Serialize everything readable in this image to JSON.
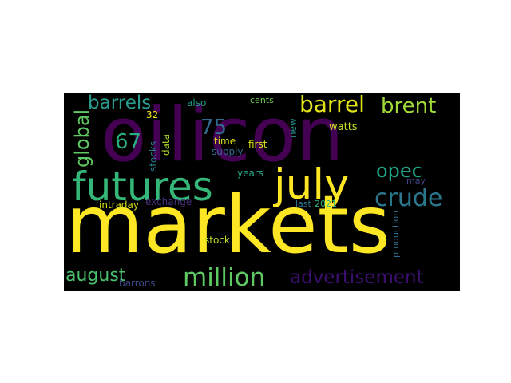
{
  "words": {
    "oilicon": {
      "text": "oilicon",
      "color": "#440154"
    },
    "markets": {
      "text": "markets",
      "color": "#fde725"
    },
    "futures": {
      "text": "futures",
      "color": "#35b779"
    },
    "july": {
      "text": "july",
      "color": "#fde725"
    },
    "crude": {
      "text": "crude",
      "color": "#2a788e"
    },
    "million": {
      "text": "million",
      "color": "#5ec962"
    },
    "advertisement": {
      "text": "advertisement",
      "color": "#3b0f70"
    },
    "barrels": {
      "text": "barrels",
      "color": "#2a9d8f"
    },
    "barrel": {
      "text": "barrel",
      "color": "#e3e419"
    },
    "brent": {
      "text": "brent",
      "color": "#a0da39"
    },
    "opec": {
      "text": "opec",
      "color": "#1fa187"
    },
    "global": {
      "text": "global",
      "color": "#5ec962"
    },
    "august": {
      "text": "august",
      "color": "#4ac16d"
    },
    "num75": {
      "text": "75",
      "color": "#31688e"
    },
    "num67": {
      "text": "67",
      "color": "#2ab07f"
    },
    "also": {
      "text": "also",
      "color": "#1f9e89"
    },
    "cents": {
      "text": "cents",
      "color": "#6ece58"
    },
    "num32": {
      "text": "32",
      "color": "#f1e51d"
    },
    "time": {
      "text": "time",
      "color": "#dde318"
    },
    "supply": {
      "text": "supply",
      "color": "#31688e"
    },
    "data": {
      "text": "data",
      "color": "#b5de2b"
    },
    "stocks": {
      "text": "stocks",
      "color": "#287d8e"
    },
    "watts": {
      "text": "watts",
      "color": "#cae11f"
    },
    "new": {
      "text": "new",
      "color": "#21908d"
    },
    "first": {
      "text": "first",
      "color": "#dde318"
    },
    "years": {
      "text": "years",
      "color": "#22a884"
    },
    "may": {
      "text": "may",
      "color": "#414487"
    },
    "exchange": {
      "text": "exchange",
      "color": "#46327e"
    },
    "intraday": {
      "text": "intraday",
      "color": "#d8e219"
    },
    "last": {
      "text": "last",
      "color": "#2a788e"
    },
    "year2021": {
      "text": "2021",
      "color": "#2fb47c"
    },
    "production": {
      "text": "production",
      "color": "#2c728e"
    },
    "stock": {
      "text": "stock",
      "color": "#bddf26"
    },
    "barrons": {
      "text": "barrons",
      "color": "#3e4989"
    }
  }
}
